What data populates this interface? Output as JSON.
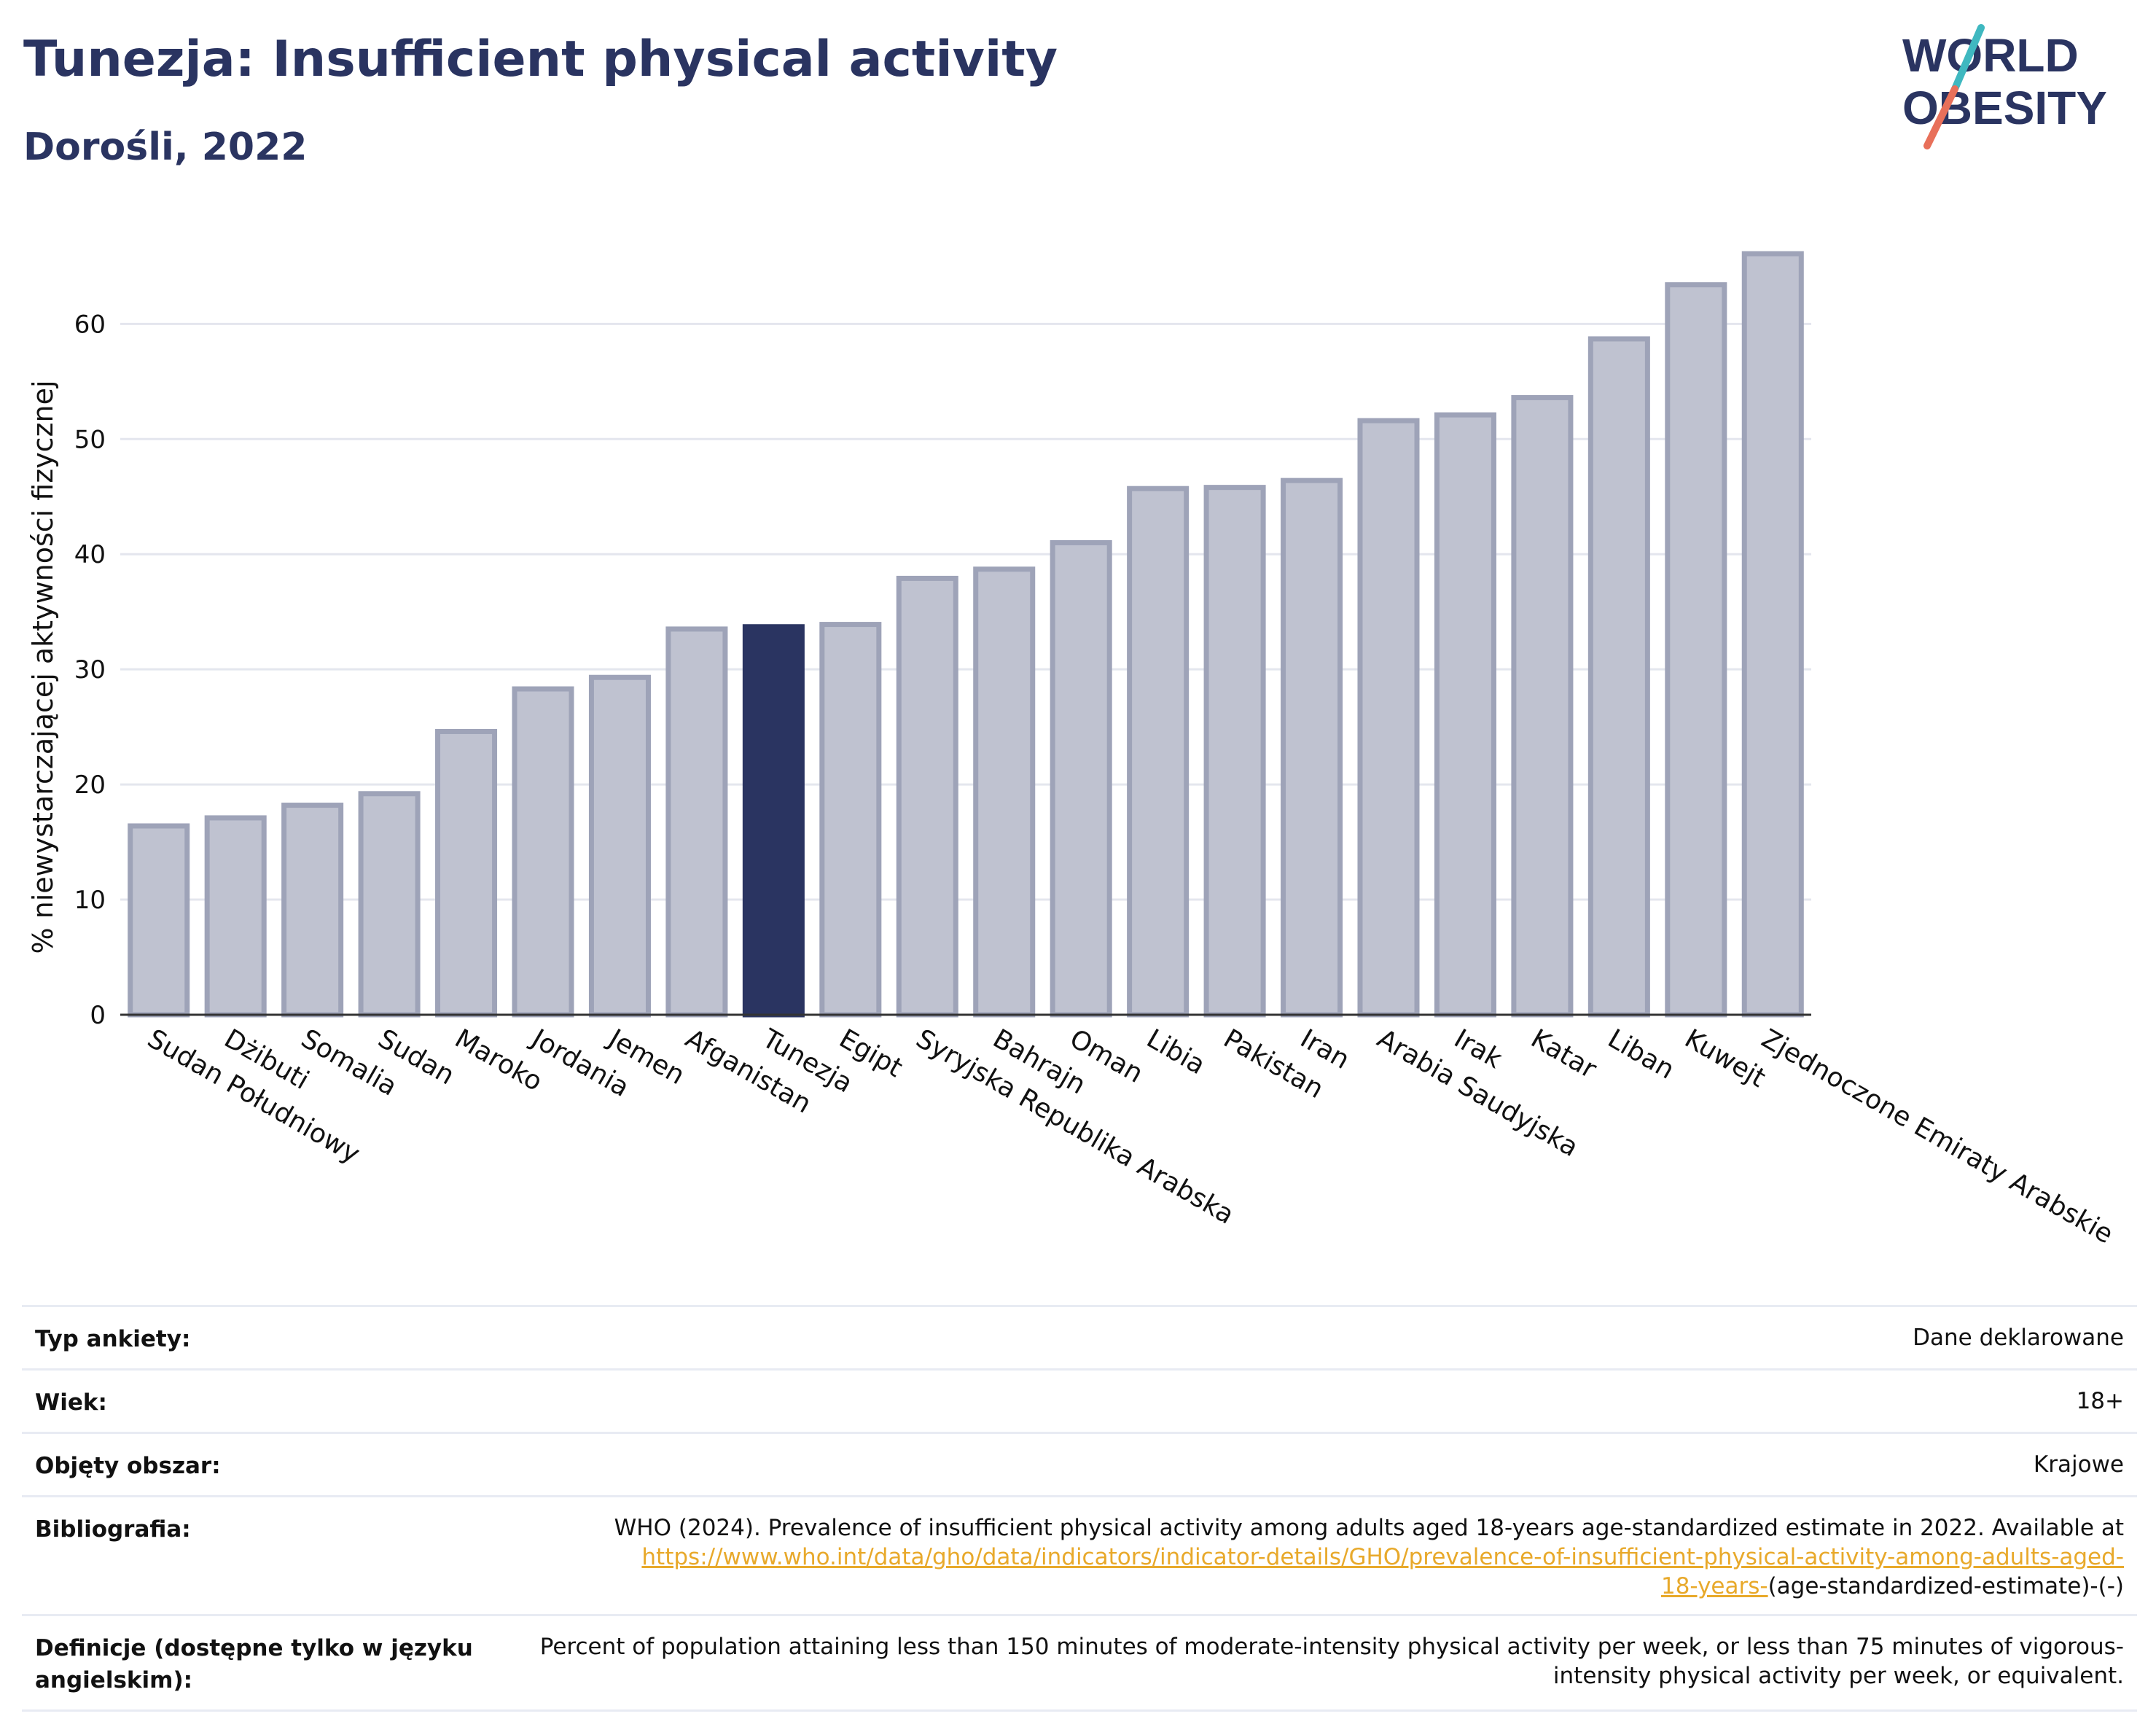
{
  "header": {
    "title": "Tunezja: Insufficient physical activity",
    "subtitle": "Dorośli, 2022"
  },
  "logo": {
    "line1": "WORLD",
    "line2": "OBESITY",
    "accent_colors": [
      "#3fb8c0",
      "#e8705a"
    ]
  },
  "colors": {
    "bar_default": "#bfc2d0",
    "bar_border": "#9ea3b8",
    "bar_highlight": "#2a3461",
    "title": "#2a3461",
    "link": "#e8a92b"
  },
  "chart_data": {
    "type": "bar",
    "title": "Tunezja: Insufficient physical activity",
    "subtitle": "Dorośli, 2022",
    "xlabel": "",
    "ylabel": "% niewystarczającej aktywności fizycznej",
    "ylim": [
      0,
      68
    ],
    "yticks": [
      0,
      10,
      20,
      30,
      40,
      50,
      60
    ],
    "grid": true,
    "highlight": "Tunezja",
    "categories": [
      "Sudan Południowy",
      "Dżibuti",
      "Somalia",
      "Sudan",
      "Maroko",
      "Jordania",
      "Jemen",
      "Afganistan",
      "Tunezja",
      "Egipt",
      "Syryjska Republika Arabska",
      "Bahrajn",
      "Oman",
      "Libia",
      "Pakistan",
      "Iran",
      "Arabia Saudyjska",
      "Irak",
      "Katar",
      "Liban",
      "Kuwejt",
      "Zjednoczone Emiraty Arabskie"
    ],
    "values": [
      16.4,
      17.1,
      18.2,
      19.2,
      24.6,
      28.3,
      29.3,
      33.5,
      33.7,
      33.9,
      37.9,
      38.7,
      41.0,
      45.7,
      45.8,
      46.4,
      51.6,
      52.1,
      53.6,
      58.7,
      63.4,
      66.1
    ]
  },
  "info": {
    "rows": [
      {
        "label": "Typ ankiety:",
        "value": "Dane deklarowane"
      },
      {
        "label": "Wiek:",
        "value": "18+"
      },
      {
        "label": "Objęty obszar:",
        "value": "Krajowe"
      }
    ],
    "bibliography": {
      "label": "Bibliografia:",
      "text": "WHO (2024). Prevalence of insufficient physical activity among adults aged 18-years age-standardized estimate in 2022. Available at",
      "link_line1": "https://www.who.int/data/gho/data/indicators/indicator-details/GHO/prevalence-of-insufficient-physical-activity-among-adults-aged-",
      "link_line2": "18-years-",
      "suffix": "(age-standardized-estimate)-(-)"
    },
    "definition": {
      "label": "Definicje (dostępne tylko w języku angielskim):",
      "text": "Percent of population attaining less than 150 minutes of moderate-intensity physical activity per week, or less than 75 minutes of vigorous-intensity physical activity per week, or equivalent."
    }
  }
}
